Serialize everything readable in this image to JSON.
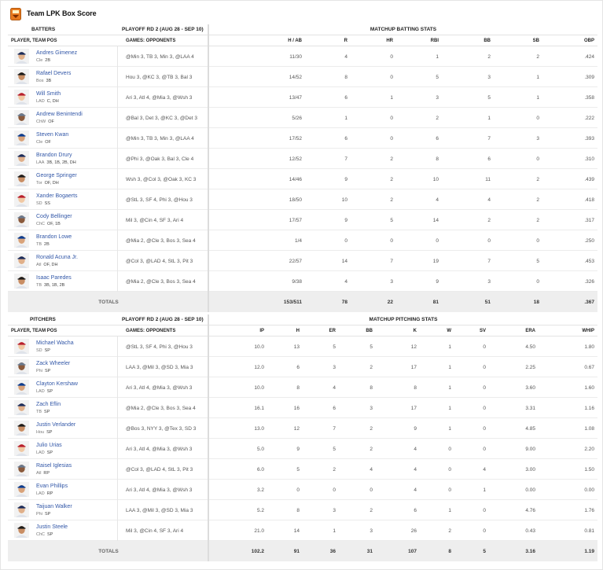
{
  "title": "Team LPK Box Score",
  "batting": {
    "left_header": "BATTERS",
    "range_header": "PLAYOFF RD 2 (AUG 28 - SEP 10)",
    "stats_header": "MATCHUP BATTING STATS",
    "col_player": "PLAYER, TEAM POS",
    "col_games": "GAMES: OPPONENTS",
    "columns": [
      "H / AB",
      "R",
      "HR",
      "RBI",
      "BB",
      "SB",
      "OBP"
    ],
    "players": [
      {
        "name": "Andres Gimenez",
        "team": "Cle",
        "pos": "2B",
        "games": "@Min 3, TB 3, Min 3, @LAA 4",
        "stats": [
          "11/30",
          "4",
          "0",
          "1",
          "2",
          "2",
          ".424"
        ]
      },
      {
        "name": "Rafael Devers",
        "team": "Bos",
        "pos": "3B",
        "games": "Hou 3, @KC 3, @TB 3, Bal 3",
        "stats": [
          "14/52",
          "8",
          "0",
          "5",
          "3",
          "1",
          ".309"
        ]
      },
      {
        "name": "Will Smith",
        "team": "LAD",
        "pos": "C, DH",
        "games": "Ari 3, Atl 4, @Mia 3, @Wsh 3",
        "stats": [
          "13/47",
          "6",
          "1",
          "3",
          "5",
          "1",
          ".358"
        ]
      },
      {
        "name": "Andrew Benintendi",
        "team": "ChW",
        "pos": "OF",
        "games": "@Bal 3, Det 3, @KC 3, @Det 3",
        "stats": [
          "5/26",
          "1",
          "0",
          "2",
          "1",
          "0",
          ".222"
        ]
      },
      {
        "name": "Steven Kwan",
        "team": "Cle",
        "pos": "OF",
        "games": "@Min 3, TB 3, Min 3, @LAA 4",
        "stats": [
          "17/52",
          "6",
          "0",
          "6",
          "7",
          "3",
          ".393"
        ]
      },
      {
        "name": "Brandon Drury",
        "team": "LAA",
        "pos": "3B, 1B, 2B, DH",
        "games": "@Phi 3, @Oak 3, Bal 3, Cle 4",
        "stats": [
          "12/52",
          "7",
          "2",
          "8",
          "6",
          "0",
          ".310"
        ]
      },
      {
        "name": "George Springer",
        "team": "Tor",
        "pos": "OF, DH",
        "games": "Wsh 3, @Col 3, @Oak 3, KC 3",
        "stats": [
          "14/46",
          "9",
          "2",
          "10",
          "11",
          "2",
          ".439"
        ]
      },
      {
        "name": "Xander Bogaerts",
        "team": "SD",
        "pos": "SS",
        "games": "@StL 3, SF 4, Phi 3, @Hou 3",
        "stats": [
          "18/50",
          "10",
          "2",
          "4",
          "4",
          "2",
          ".418"
        ]
      },
      {
        "name": "Cody Bellinger",
        "team": "ChC",
        "pos": "OF, 1B",
        "games": "Mil 3, @Cin 4, SF 3, Ari 4",
        "stats": [
          "17/57",
          "9",
          "5",
          "14",
          "2",
          "2",
          ".317"
        ]
      },
      {
        "name": "Brandon Lowe",
        "team": "TB",
        "pos": "2B",
        "games": "@Mia 2, @Cle 3, Bos 3, Sea 4",
        "stats": [
          "1/4",
          "0",
          "0",
          "0",
          "0",
          "0",
          ".250"
        ]
      },
      {
        "name": "Ronald Acuna Jr.",
        "team": "Atl",
        "pos": "OF, DH",
        "games": "@Col 3, @LAD 4, StL 3, Pit 3",
        "stats": [
          "22/57",
          "14",
          "7",
          "19",
          "7",
          "5",
          ".453"
        ]
      },
      {
        "name": "Isaac Paredes",
        "team": "TB",
        "pos": "3B, 1B, 2B",
        "games": "@Mia 2, @Cle 3, Bos 3, Sea 4",
        "stats": [
          "9/38",
          "4",
          "3",
          "9",
          "3",
          "0",
          ".326"
        ]
      }
    ],
    "totals_label": "TOTALS",
    "totals": [
      "153/511",
      "78",
      "22",
      "81",
      "51",
      "18",
      ".367"
    ]
  },
  "pitching": {
    "left_header": "PITCHERS",
    "range_header": "PLAYOFF RD 2 (AUG 28 - SEP 10)",
    "stats_header": "MATCHUP PITCHING STATS",
    "col_player": "PLAYER, TEAM POS",
    "col_games": "GAMES: OPPONENTS",
    "columns": [
      "IP",
      "H",
      "ER",
      "BB",
      "K",
      "W",
      "SV",
      "ERA",
      "WHIP"
    ],
    "players": [
      {
        "name": "Michael Wacha",
        "team": "SD",
        "pos": "SP",
        "games": "@StL 3, SF 4, Phi 3, @Hou 3",
        "stats": [
          "10.0",
          "13",
          "5",
          "5",
          "12",
          "1",
          "0",
          "4.50",
          "1.80"
        ]
      },
      {
        "name": "Zack Wheeler",
        "team": "Phi",
        "pos": "SP",
        "games": "LAA 3, @Mil 3, @SD 3, Mia 3",
        "stats": [
          "12.0",
          "6",
          "3",
          "2",
          "17",
          "1",
          "0",
          "2.25",
          "0.67"
        ]
      },
      {
        "name": "Clayton Kershaw",
        "team": "LAD",
        "pos": "SP",
        "games": "Ari 3, Atl 4, @Mia 3, @Wsh 3",
        "stats": [
          "10.0",
          "8",
          "4",
          "8",
          "8",
          "1",
          "0",
          "3.60",
          "1.60"
        ]
      },
      {
        "name": "Zach Eflin",
        "team": "TB",
        "pos": "SP",
        "games": "@Mia 2, @Cle 3, Bos 3, Sea 4",
        "stats": [
          "16.1",
          "16",
          "6",
          "3",
          "17",
          "1",
          "0",
          "3.31",
          "1.16"
        ]
      },
      {
        "name": "Justin Verlander",
        "team": "Hou",
        "pos": "SP",
        "games": "@Bos 3, NYY 3, @Tex 3, SD 3",
        "stats": [
          "13.0",
          "12",
          "7",
          "2",
          "9",
          "1",
          "0",
          "4.85",
          "1.08"
        ]
      },
      {
        "name": "Julio Urias",
        "team": "LAD",
        "pos": "SP",
        "games": "Ari 3, Atl 4, @Mia 3, @Wsh 3",
        "stats": [
          "5.0",
          "9",
          "5",
          "2",
          "4",
          "0",
          "0",
          "9.00",
          "2.20"
        ]
      },
      {
        "name": "Raisel Iglesias",
        "team": "Atl",
        "pos": "RP",
        "games": "@Col 3, @LAD 4, StL 3, Pit 3",
        "stats": [
          "6.0",
          "5",
          "2",
          "4",
          "4",
          "0",
          "4",
          "3.00",
          "1.50"
        ]
      },
      {
        "name": "Evan Phillips",
        "team": "LAD",
        "pos": "RP",
        "games": "Ari 3, Atl 4, @Mia 3, @Wsh 3",
        "stats": [
          "3.2",
          "0",
          "0",
          "0",
          "4",
          "0",
          "1",
          "0.00",
          "0.00"
        ]
      },
      {
        "name": "Taijuan Walker",
        "team": "Phi",
        "pos": "SP",
        "games": "LAA 3, @Mil 3, @SD 3, Mia 3",
        "stats": [
          "5.2",
          "8",
          "3",
          "2",
          "6",
          "1",
          "0",
          "4.76",
          "1.76"
        ]
      },
      {
        "name": "Justin Steele",
        "team": "ChC",
        "pos": "SP",
        "games": "Mil 3, @Cin 4, SF 3, Ari 4",
        "stats": [
          "21.0",
          "14",
          "1",
          "3",
          "26",
          "2",
          "0",
          "0.43",
          "0.81"
        ]
      }
    ],
    "totals_label": "TOTALS",
    "totals": [
      "102.2",
      "91",
      "36",
      "31",
      "107",
      "8",
      "5",
      "3.16",
      "1.19"
    ]
  },
  "colors": {
    "link": "#3358a8",
    "totals_bg": "#eeeeee",
    "border": "#e3e3e3"
  },
  "icons": {
    "logo": "team-logo-icon",
    "avatar": "player-avatar-icon"
  }
}
